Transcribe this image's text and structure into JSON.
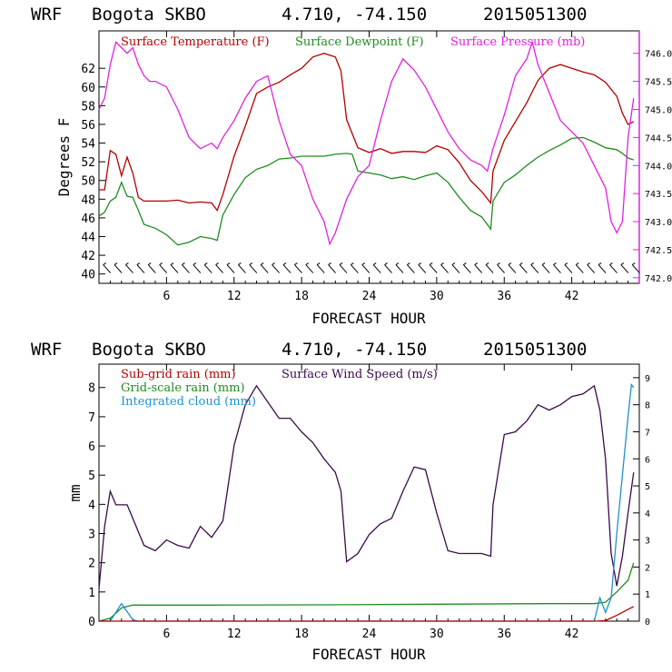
{
  "colors": {
    "temperature": "#b40000",
    "dewpoint": "#1e8c1e",
    "pressure": "#e020e0",
    "subgrid_rain": "#b40000",
    "gridscale_rain": "#1e8c1e",
    "cloud": "#1e90d0",
    "wind": "#3a0a4a",
    "wind_barbs": "#000000"
  },
  "chart_data": [
    {
      "type": "line",
      "header": {
        "model": "WRF",
        "location": "Bogota SKBO",
        "coords": "4.710, -74.150",
        "run": "2015051300"
      },
      "xlabel": "FORECAST HOUR",
      "ylabel": "Degrees F",
      "xlim": [
        0,
        48
      ],
      "xticks": [
        "6",
        "12",
        "18",
        "24",
        "30",
        "36",
        "42"
      ],
      "ylim": [
        39,
        66
      ],
      "yticks": [
        "40",
        "42",
        "44",
        "46",
        "48",
        "50",
        "52",
        "54",
        "56",
        "58",
        "60",
        "62"
      ],
      "y2lim": [
        741.9,
        746.4
      ],
      "y2ticks": [
        "742.0",
        "742.5",
        "743.0",
        "743.5",
        "744.0",
        "744.5",
        "745.0",
        "745.5",
        "746.0"
      ],
      "wind_barbs": "along bottom at 40 F",
      "series": [
        {
          "name": "Surface Temperature (F)",
          "axis": "left",
          "x": [
            0,
            0.5,
            1,
            1.5,
            2,
            2.5,
            3,
            3.5,
            4,
            5,
            6,
            7,
            8,
            9,
            10,
            10.5,
            11,
            12,
            13,
            14,
            15,
            16,
            17,
            18,
            19,
            20,
            21,
            21.5,
            22,
            23,
            24,
            25,
            26,
            27,
            28,
            29,
            30,
            31,
            32,
            33,
            34,
            34.8,
            35,
            36,
            37,
            38,
            39,
            40,
            41,
            42,
            43,
            44,
            45,
            46,
            46.5,
            47,
            47.5
          ],
          "values": [
            49,
            49,
            53.2,
            52.8,
            50.5,
            52.5,
            50.8,
            48.2,
            47.8,
            47.8,
            47.8,
            47.9,
            47.6,
            47.7,
            47.6,
            46.8,
            48.5,
            52.6,
            55.8,
            59.3,
            60,
            60.5,
            61.3,
            62,
            63.2,
            63.6,
            63.2,
            61.7,
            56.5,
            53.5,
            53,
            53.4,
            52.9,
            53.1,
            53.1,
            53,
            53.7,
            53.3,
            51.9,
            50,
            48.8,
            47.6,
            51,
            54.3,
            56.3,
            58.3,
            60.7,
            62,
            62.4,
            62,
            61.6,
            61.3,
            60.5,
            59,
            57.2,
            56,
            56.3
          ]
        },
        {
          "name": "Surface Dewpoint (F)",
          "axis": "left",
          "x": [
            0,
            0.5,
            1,
            1.5,
            2,
            2.5,
            3,
            3.5,
            4,
            5,
            6,
            7,
            8,
            9,
            10,
            10.5,
            11,
            12,
            13,
            14,
            15,
            16,
            17,
            18,
            19,
            20,
            21,
            22,
            22.5,
            23,
            24,
            25,
            26,
            27,
            28,
            29,
            30,
            31,
            32,
            33,
            34,
            34.8,
            35,
            36,
            37,
            38,
            39,
            40,
            41,
            42,
            43,
            44,
            45,
            46,
            46.5,
            47,
            47.5
          ],
          "values": [
            46.2,
            46.6,
            47.8,
            48.2,
            49.8,
            48.3,
            48.2,
            46.8,
            45.3,
            44.9,
            44.2,
            43.1,
            43.4,
            44,
            43.8,
            43.6,
            46.3,
            48.5,
            50.3,
            51.2,
            51.6,
            52.3,
            52.4,
            52.6,
            52.6,
            52.6,
            52.8,
            52.9,
            52.8,
            51,
            50.8,
            50.6,
            50.2,
            50.4,
            50.1,
            50.5,
            50.8,
            49.8,
            48.2,
            46.8,
            46.1,
            44.8,
            47.8,
            49.8,
            50.6,
            51.6,
            52.5,
            53.2,
            53.8,
            54.5,
            54.6,
            54.1,
            53.5,
            53.3,
            52.9,
            52.4,
            52.2
          ]
        },
        {
          "name": "Surface Pressure (mb)",
          "axis": "right",
          "x": [
            0,
            0.5,
            1,
            1.5,
            2,
            2.5,
            3,
            3.5,
            4,
            4.5,
            5,
            6,
            7,
            8,
            9,
            10,
            10.5,
            11,
            12,
            13,
            14,
            15,
            16,
            17,
            18,
            19,
            20,
            20.5,
            21,
            22,
            23,
            24,
            25,
            26,
            27,
            28,
            29,
            30,
            31,
            32,
            33,
            34,
            34.5,
            35,
            36,
            37,
            38,
            38.5,
            39,
            40,
            41,
            42,
            43,
            44,
            44.5,
            45,
            45.5,
            46,
            46.5,
            47,
            47.5
          ],
          "values": [
            745,
            745.2,
            745.8,
            746.2,
            746.1,
            746.0,
            746.1,
            745.8,
            745.6,
            745.5,
            745.5,
            745.4,
            745.0,
            744.5,
            744.3,
            744.4,
            744.3,
            744.5,
            744.8,
            745.2,
            745.5,
            745.6,
            744.8,
            744.2,
            744.0,
            743.4,
            743.0,
            742.6,
            742.8,
            743.4,
            743.8,
            744.0,
            744.8,
            745.5,
            745.9,
            745.7,
            745.4,
            745.0,
            744.6,
            744.3,
            744.1,
            744.0,
            743.9,
            744.3,
            744.9,
            745.6,
            745.9,
            746.2,
            745.8,
            745.3,
            744.8,
            744.6,
            744.4,
            744.0,
            743.8,
            743.6,
            743.0,
            742.8,
            743.0,
            744.5,
            745.2
          ]
        }
      ]
    },
    {
      "type": "line",
      "header": {
        "model": "WRF",
        "location": "Bogota SKBO",
        "coords": "4.710, -74.150",
        "run": "2015051300"
      },
      "xlabel": "FORECAST HOUR",
      "ylabel": "mm",
      "xlim": [
        0,
        48
      ],
      "xticks": [
        "6",
        "12",
        "18",
        "24",
        "30",
        "36",
        "42"
      ],
      "ylim": [
        0,
        8.8
      ],
      "yticks": [
        "0",
        "1",
        "2",
        "3",
        "4",
        "5",
        "6",
        "7",
        "8"
      ],
      "y2lim": [
        0,
        9.5
      ],
      "y2ticks": [
        "0",
        "1",
        "2",
        "3",
        "4",
        "5",
        "6",
        "7",
        "8",
        "9"
      ],
      "series": [
        {
          "name": "Sub-grid rain (mm)",
          "axis": "left",
          "x": [
            0,
            44,
            45,
            46,
            47,
            47.5
          ],
          "values": [
            0,
            0,
            0.02,
            0.2,
            0.4,
            0.5
          ]
        },
        {
          "name": "Grid-scale rain (mm)",
          "axis": "left",
          "x": [
            0,
            1,
            2,
            3,
            10,
            20,
            30,
            40,
            44,
            45,
            46,
            47,
            47.5
          ],
          "values": [
            0,
            0.1,
            0.45,
            0.55,
            0.55,
            0.56,
            0.58,
            0.6,
            0.6,
            0.65,
            1.0,
            1.4,
            2.0
          ]
        },
        {
          "name": "Integrated cloud (mm)",
          "axis": "left",
          "x": [
            0,
            1,
            2,
            3,
            3.5,
            4,
            44,
            44.5,
            45,
            45.5,
            46,
            46.5,
            47,
            47.3,
            47.5
          ],
          "values": [
            0,
            0,
            0.6,
            0.05,
            0,
            0,
            0,
            0.8,
            0.3,
            0.8,
            3.0,
            5.0,
            7.0,
            8.1,
            8.0
          ]
        },
        {
          "name": "Surface Wind Speed (m/s)",
          "axis": "right",
          "x": [
            0,
            0.5,
            1,
            1.5,
            2,
            2.5,
            3,
            4,
            5,
            6,
            7,
            8,
            9,
            10,
            11,
            12,
            13,
            14,
            15,
            16,
            17,
            18,
            19,
            20,
            21,
            21.5,
            22,
            23,
            24,
            25,
            26,
            27,
            28,
            29,
            30,
            31,
            32,
            33,
            34,
            34.8,
            35,
            36,
            37,
            38,
            39,
            40,
            41,
            42,
            43,
            44,
            44.5,
            45,
            45.5,
            46,
            46.5,
            47,
            47.5
          ],
          "values": [
            1.2,
            3.5,
            4.8,
            4.3,
            4.3,
            4.3,
            3.8,
            2.8,
            2.6,
            3.0,
            2.8,
            2.7,
            3.5,
            3.1,
            3.7,
            6.5,
            8.0,
            8.7,
            8.1,
            7.5,
            7.5,
            7.0,
            6.6,
            6.0,
            5.5,
            4.8,
            2.2,
            2.5,
            3.2,
            3.6,
            3.8,
            4.8,
            5.7,
            5.6,
            4.0,
            2.6,
            2.5,
            2.5,
            2.5,
            2.4,
            4.3,
            6.9,
            7.0,
            7.4,
            8.0,
            7.8,
            8.0,
            8.3,
            8.4,
            8.7,
            7.8,
            6.0,
            2.5,
            1.3,
            2.4,
            4.0,
            5.5
          ]
        }
      ]
    }
  ]
}
